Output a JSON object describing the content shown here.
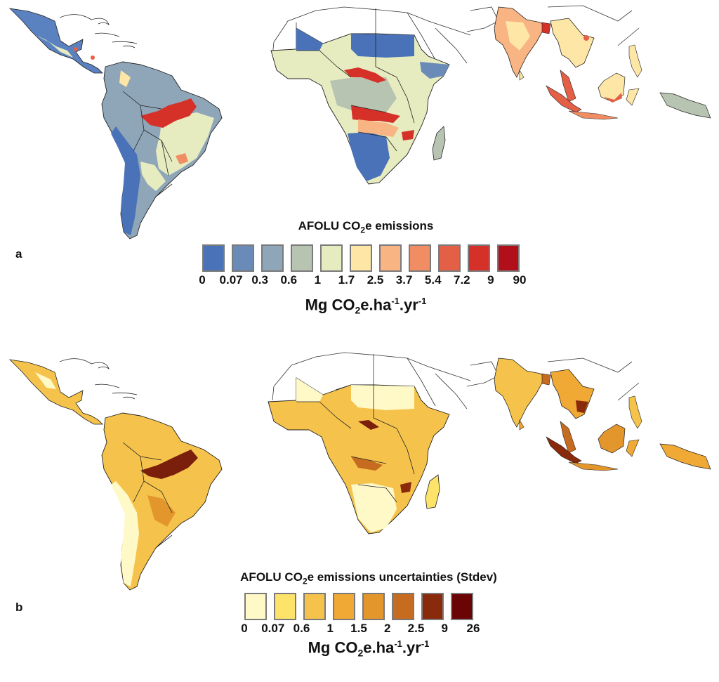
{
  "figure": {
    "panels": [
      {
        "letter": "a",
        "legend": {
          "title_pre": "AFOLU CO",
          "title_sub": "2",
          "title_post": "e emissions",
          "classes": [
            {
              "color": "#4a72b8"
            },
            {
              "color": "#6a8bb8"
            },
            {
              "color": "#8ea6b8"
            },
            {
              "color": "#b7c4b2"
            },
            {
              "color": "#e6ebc0"
            },
            {
              "color": "#fde6a6"
            },
            {
              "color": "#f9b483"
            },
            {
              "color": "#f18d62"
            },
            {
              "color": "#e35f45"
            },
            {
              "color": "#d63129"
            },
            {
              "color": "#b10f1a"
            }
          ],
          "breaks": [
            "0",
            "0.07",
            "0.3",
            "0.6",
            "1",
            "1.7",
            "2.5",
            "3.7",
            "5.4",
            "7.2",
            "9",
            "90"
          ],
          "unit": {
            "pre": "Mg CO",
            "sub": "2",
            "mid": "e.ha",
            "sup1": "-1",
            "mid2": ".yr",
            "sup2": "-1"
          }
        },
        "regions": [
          "Latin America",
          "Sub-Saharan Africa",
          "South and Southeast Asia"
        ]
      },
      {
        "letter": "b",
        "legend": {
          "title_pre": "AFOLU CO",
          "title_sub": "2",
          "title_post": "e emissions uncertainties (Stdev)",
          "classes": [
            {
              "color": "#fff9c8"
            },
            {
              "color": "#fde36a"
            },
            {
              "color": "#f5c34c"
            },
            {
              "color": "#f0a934"
            },
            {
              "color": "#e3962c"
            },
            {
              "color": "#c66c20"
            },
            {
              "color": "#8a2a0c"
            },
            {
              "color": "#6b0505"
            }
          ],
          "breaks": [
            "0",
            "0.07",
            "0.6",
            "1",
            "1.5",
            "2",
            "2.5",
            "9",
            "26"
          ],
          "unit": {
            "pre": "Mg CO",
            "sub": "2",
            "mid": "e.ha",
            "sup1": "-1",
            "mid2": ".yr",
            "sup2": "-1"
          }
        },
        "regions": [
          "Latin America",
          "Sub-Saharan Africa",
          "South and Southeast Asia"
        ]
      }
    ]
  }
}
